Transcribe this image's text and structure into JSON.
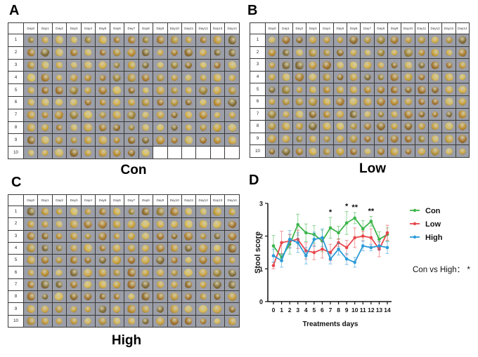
{
  "figure": {
    "panels": [
      {
        "letter": "A",
        "group": "Con"
      },
      {
        "letter": "B",
        "group": "Low"
      },
      {
        "letter": "C",
        "group": "High"
      },
      {
        "letter": "D"
      }
    ],
    "table_columns": [
      "Day0",
      "Day1",
      "Day2",
      "Day3",
      "Day4",
      "Day5",
      "Day6",
      "Day7",
      "Day8",
      "Day9",
      "Day10",
      "Day11",
      "Day12",
      "Day13",
      "Day14"
    ],
    "table_rows": [
      "1",
      "2",
      "3",
      "4",
      "5",
      "6",
      "7",
      "8",
      "9",
      "10"
    ],
    "tables": {
      "Con": {
        "row10_filled_days": 9
      },
      "Low": {
        "row10_filled_days": 15
      },
      "High": {
        "row10_filled_days": 15
      }
    },
    "cell_content": "stool sample photo"
  },
  "chart_data": {
    "type": "line",
    "title": "",
    "xlabel": "Treatments days",
    "ylabel": "Stool score",
    "x": [
      0,
      1,
      2,
      3,
      4,
      5,
      6,
      7,
      8,
      9,
      10,
      11,
      12,
      13,
      14
    ],
    "xticks": [
      "0",
      "1",
      "2",
      "3",
      "4",
      "5",
      "6",
      "7",
      "8",
      "9",
      "10",
      "11",
      "12",
      "13",
      "14"
    ],
    "yticks": [
      "0",
      "1",
      "2",
      "3"
    ],
    "ylim": [
      0,
      3
    ],
    "grid": false,
    "legend_position": "right",
    "series": [
      {
        "name": "Con",
        "color": "#3cb54a",
        "values": [
          1.7,
          1.35,
          1.75,
          2.35,
          2.1,
          2.05,
          1.85,
          2.25,
          2.1,
          2.4,
          2.55,
          2.22,
          2.45,
          1.9,
          2.05
        ],
        "errors": [
          0.32,
          0.12,
          0.3,
          0.32,
          0.27,
          0.27,
          0.33,
          0.32,
          0.2,
          0.35,
          0.17,
          0.25,
          0.15,
          0.23,
          0.2
        ]
      },
      {
        "name": "Low",
        "color": "#e8464b",
        "values": [
          1.1,
          1.8,
          1.85,
          1.9,
          1.55,
          1.5,
          1.6,
          1.5,
          1.8,
          1.65,
          1.95,
          2.0,
          1.95,
          1.6,
          2.1
        ],
        "errors": [
          0.1,
          0.35,
          0.2,
          0.28,
          0.25,
          0.22,
          0.27,
          0.25,
          0.12,
          0.22,
          0.3,
          0.15,
          0.27,
          0.23,
          0.23
        ]
      },
      {
        "name": "High",
        "color": "#2b9ad8",
        "values": [
          1.4,
          1.25,
          1.9,
          1.8,
          1.4,
          1.9,
          1.95,
          1.3,
          1.6,
          1.3,
          1.2,
          1.7,
          1.65,
          1.7,
          1.65
        ],
        "errors": [
          0.2,
          0.2,
          0.27,
          0.3,
          0.25,
          0.22,
          0.27,
          0.15,
          0.18,
          0.17,
          0.15,
          0.15,
          0.1,
          0.12,
          0.18
        ]
      }
    ],
    "significance": [
      {
        "x": 7,
        "label": "*"
      },
      {
        "x": 9,
        "label": "*"
      },
      {
        "x": 10,
        "label": "**"
      },
      {
        "x": 12,
        "label": "**"
      }
    ],
    "annotation": "Con vs High： *"
  }
}
